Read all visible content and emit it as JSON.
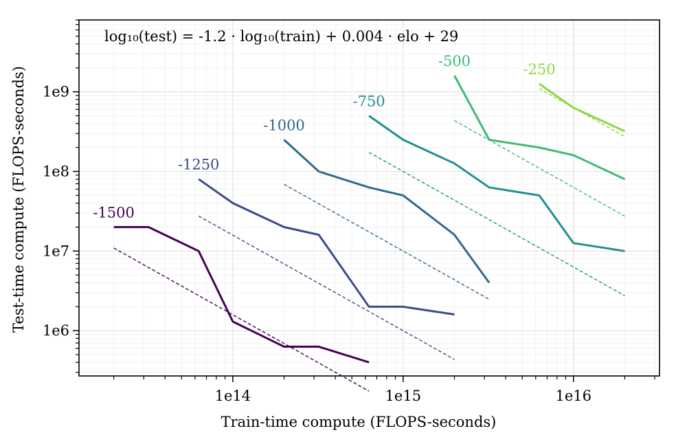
{
  "chart_data": {
    "type": "line",
    "xlabel": "Train-time compute (FLOPS-seconds)",
    "ylabel": "Test-time compute (FLOPS-seconds)",
    "xscale": "log",
    "yscale": "log",
    "xlim": [
      12500000000000.0,
      3.2e+16
    ],
    "ylim": [
      270000.0,
      8000000000.0
    ],
    "x_tick_labels": [
      {
        "value": 100000000000000.0,
        "label": "1e14"
      },
      {
        "value": 1000000000000000.0,
        "label": "1e15"
      },
      {
        "value": 1e+16,
        "label": "1e16"
      }
    ],
    "y_tick_labels": [
      {
        "value": 1000000.0,
        "label": "1e6"
      },
      {
        "value": 10000000.0,
        "label": "1e7"
      },
      {
        "value": 100000000.0,
        "label": "1e8"
      },
      {
        "value": 1000000000.0,
        "label": "1e9"
      }
    ],
    "grid": true,
    "annotation": "log₁₀(test) = -1.2 · log₁₀(train) + 0.004 · elo + 29",
    "fit": {
      "slope": -1.2,
      "elo_coef": 0.004,
      "intercept": 29
    },
    "series": [
      {
        "name": "-1500",
        "elo": -1500,
        "color": "#440154",
        "x": [
          20000000000000.0,
          32000000000000.0,
          63000000000000.0,
          100000000000000.0,
          200000000000000.0,
          320000000000000.0,
          630000000000000.0
        ],
        "y": [
          20000000.0,
          20000000.0,
          10000000.0,
          1300000.0,
          630000.0,
          630000.0,
          400000.0
        ]
      },
      {
        "name": "-1250",
        "elo": -1250,
        "color": "#3b4a8a",
        "x": [
          63000000000000.0,
          100000000000000.0,
          200000000000000.0,
          320000000000000.0,
          630000000000000.0,
          1000000000000000.0,
          2000000000000000.0
        ],
        "y": [
          80000000.0,
          40000000.0,
          20000000.0,
          16000000.0,
          2000000.0,
          2000000.0,
          1600000.0
        ]
      },
      {
        "name": "-1000",
        "elo": -1000,
        "color": "#2d6a8e",
        "x": [
          200000000000000.0,
          320000000000000.0,
          630000000000000.0,
          1000000000000000.0,
          2000000000000000.0,
          3200000000000000.0
        ],
        "y": [
          250000000.0,
          100000000.0,
          63000000.0,
          50000000.0,
          16000000.0,
          4000000.0
        ]
      },
      {
        "name": "-750",
        "elo": -750,
        "color": "#21908d",
        "x": [
          630000000000000.0,
          1000000000000000.0,
          2000000000000000.0,
          3200000000000000.0,
          6300000000000000.0,
          1e+16,
          2e+16
        ],
        "y": [
          500000000.0,
          250000000.0,
          126000000.0,
          63000000.0,
          50000000.0,
          12600000.0,
          10000000.0
        ]
      },
      {
        "name": "-500",
        "elo": -500,
        "color": "#3dbb75",
        "x": [
          2000000000000000.0,
          3200000000000000.0,
          6300000000000000.0,
          1e+16,
          2e+16
        ],
        "y": [
          1600000000.0,
          250000000.0,
          200000000.0,
          160000000.0,
          80000000.0
        ]
      },
      {
        "name": "-250",
        "elo": -250,
        "color": "#8fd744",
        "x": [
          6300000000000000.0,
          1e+16,
          2e+16
        ],
        "y": [
          1260000000.0,
          630000000.0,
          320000000.0
        ]
      }
    ]
  }
}
